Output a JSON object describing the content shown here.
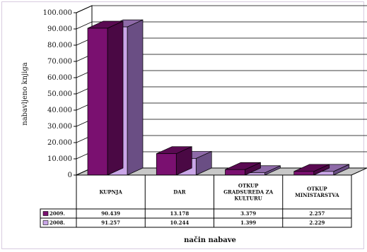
{
  "chart_data": {
    "type": "bar",
    "title": "",
    "ylabel": "nabavljeno knjiga",
    "xlabel": "način nabave",
    "ylim": [
      0,
      100000
    ],
    "yticks": [
      "0",
      "10.000",
      "20.000",
      "30.000",
      "40.000",
      "50.000",
      "60.000",
      "70.000",
      "80.000",
      "90.000",
      "100.000"
    ],
    "categories": [
      "KUPNJA",
      "DAR",
      "OTKUP GRADSKOG UREDA ZA KULTURU",
      "OTKUP MINISTARSTVA"
    ],
    "category_lines": [
      [
        "KUPNJA"
      ],
      [
        "DAR"
      ],
      [
        "OTKUP",
        "GRADSUREDA ZA",
        "KULTURU"
      ],
      [
        "OTKUP",
        "MINISTARSTVA"
      ]
    ],
    "series": [
      {
        "name": "2009.",
        "values": [
          90439,
          13178,
          3379,
          2257
        ],
        "labels": [
          "90.439",
          "13.178",
          "3.379",
          "2.257"
        ]
      },
      {
        "name": "2008.",
        "values": [
          91257,
          10244,
          1399,
          2229
        ],
        "labels": [
          "91.257",
          "10.244",
          "1.399",
          "2.229"
        ]
      }
    ],
    "grid": true,
    "legend": "table-left",
    "colors": {
      "s0_front": "#7a1070",
      "s0_top": "#5a0a52",
      "s0_side": "#4a0844",
      "s1_front": "#caa6e8",
      "s1_top": "#8e6aa8",
      "s1_side": "#6a4e84",
      "wall": "#ffffff",
      "floor": "#c8c8c8",
      "line": "#000000"
    }
  }
}
